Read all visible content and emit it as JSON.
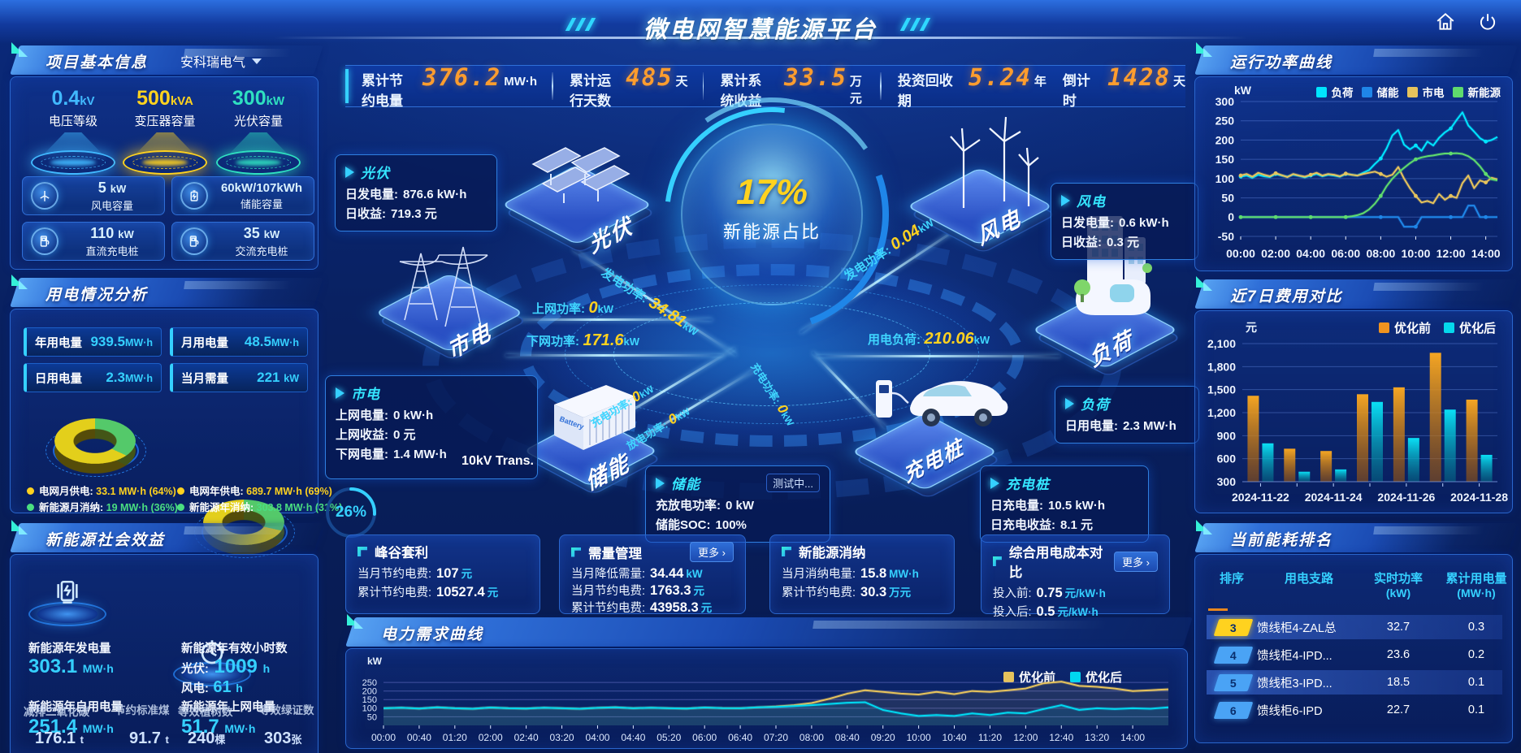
{
  "header": {
    "title": "微电网智慧能源平台"
  },
  "kpi_bar": [
    {
      "label": "累计节约电量",
      "value": "376.2",
      "unit": "MW·h"
    },
    {
      "label": "累计运行天数",
      "value": "485",
      "unit": "天"
    },
    {
      "label": "累计系统收益",
      "value": "33.5",
      "unit": "万元"
    },
    {
      "label": "投资回收期",
      "value": "5.24",
      "unit": "年"
    },
    {
      "label": "倒计时",
      "value": "1428",
      "unit": "天"
    }
  ],
  "project_info": {
    "title": "项目基本信息",
    "company": "安科瑞电气",
    "cones": [
      {
        "value": "0.4",
        "unit": "kV",
        "label": "电压等级",
        "color": "#41b9ff"
      },
      {
        "value": "500",
        "unit": "kVA",
        "label": "变压器容量",
        "color": "#ffd21f"
      },
      {
        "value": "300",
        "unit": "kW",
        "label": "光伏容量",
        "color": "#2fe0c0"
      }
    ],
    "cards": [
      {
        "value": "5",
        "unit": "kW",
        "label": "风电容量",
        "icon": "wind-turbine"
      },
      {
        "value": "60kW/107kWh",
        "unit": "",
        "label": "储能容量",
        "icon": "battery"
      },
      {
        "value": "110",
        "unit": "kW",
        "label": "直流充电桩",
        "icon": "dc-charger"
      },
      {
        "value": "35",
        "unit": "kW",
        "label": "交流充电桩",
        "icon": "ac-charger"
      }
    ]
  },
  "usage": {
    "title": "用电情况分析",
    "stats": [
      {
        "label": "年用电量",
        "value": "939.5",
        "unit": "MW·h"
      },
      {
        "label": "月用电量",
        "value": "48.5",
        "unit": "MW·h"
      },
      {
        "label": "日用电量",
        "value": "2.3",
        "unit": "MW·h"
      },
      {
        "label": "当月需量",
        "value": "221",
        "unit": "kW"
      }
    ],
    "donuts": [
      {
        "grid_label": "电网月供电:",
        "grid_value": "33.1 MW·h (64%)",
        "renew_label": "新能源月消纳:",
        "renew_value": "19 MW·h (36%)",
        "grid_pct": 64
      },
      {
        "grid_label": "电网年供电:",
        "grid_value": "689.7 MW·h (69%)",
        "renew_label": "新能源年消纳:",
        "renew_value": "303.8 MW·h (31%)",
        "grid_pct": 69
      }
    ]
  },
  "benefits": {
    "title": "新能源社会效益",
    "gen_label": "新能源年发电量",
    "gen_value": "303.1",
    "gen_unit": "MW·h",
    "hours_label": "新能源年有效小时数",
    "pv_k": "光伏:",
    "pv_v": "1009",
    "pv_u": "h",
    "wind_k": "风电:",
    "wind_v": "61",
    "wind_u": "h",
    "self_label": "新能源年自用电量",
    "self_value": "251.4",
    "self_unit": "MW·h",
    "co2_label": "减排二氧化碳",
    "co2_value": "176.1",
    "co2_unit": "t",
    "coal_label": "节约标准煤",
    "coal_value": "91.7",
    "coal_unit": "t",
    "export_label": "新能源年上网电量",
    "export_value": "51.7",
    "export_unit": "MW·h",
    "trees_label": "等效植树数",
    "trees_value": "240",
    "trees_unit": "棵",
    "cert_label": "等效绿证数",
    "cert_value": "303",
    "cert_unit": "张"
  },
  "center": {
    "orb_pct": "17%",
    "orb_label": "新能源占比",
    "nodes": {
      "pv": "光伏",
      "wind": "风电",
      "grid": "市电",
      "load": "负荷",
      "storage": "储能",
      "charger": "充电桩"
    },
    "storage_icon_text": "Battery",
    "boxes": {
      "pv": {
        "title": "光伏",
        "rows": [
          {
            "k": "日发电量:",
            "v": "876.6 kW·h"
          },
          {
            "k": "日收益:",
            "v": "719.3 元"
          }
        ]
      },
      "wind": {
        "title": "风电",
        "rows": [
          {
            "k": "日发电量:",
            "v": "0.6 kW·h"
          },
          {
            "k": "日收益:",
            "v": "0.3 元"
          }
        ]
      },
      "grid": {
        "title": "市电",
        "rows": [
          {
            "k": "上网电量:",
            "v": "0 kW·h"
          },
          {
            "k": "上网收益:",
            "v": "0 元"
          },
          {
            "k": "下网电量:",
            "v": "1.4 MW·h"
          }
        ],
        "gauge_pct": "26%",
        "gauge_label": "10kV Trans."
      },
      "load": {
        "title": "负荷",
        "rows": [
          {
            "k": "日用电量:",
            "v": "2.3 MW·h"
          }
        ]
      },
      "storage": {
        "title": "储能",
        "badge": "测试中...",
        "rows": [
          {
            "k": "充放电功率:",
            "v": "0 kW"
          },
          {
            "k": "储能SOC:",
            "v": "100%"
          }
        ]
      },
      "charger": {
        "title": "充电桩",
        "rows": [
          {
            "k": "日充电量:",
            "v": "10.5 kW·h"
          },
          {
            "k": "日充电收益:",
            "v": "8.1 元"
          }
        ]
      }
    },
    "flows": {
      "pv_gen": {
        "k": "发电功率:",
        "v": "34.81",
        "u": "kW"
      },
      "to_grid": {
        "k": "上网功率:",
        "v": "0",
        "u": "kW"
      },
      "from_grid": {
        "k": "下网功率:",
        "v": "171.6",
        "u": "kW"
      },
      "wind_gen": {
        "k": "发电功率:",
        "v": "0.04",
        "u": "kW"
      },
      "load_power": {
        "k": "用电负荷:",
        "v": "210.06",
        "u": "kW"
      },
      "st_charge": {
        "k": "充电功率:",
        "v": "0",
        "u": "kW"
      },
      "st_discharge": {
        "k": "放电功率:",
        "v": "0",
        "u": "kW"
      },
      "ev_charge": {
        "k": "充电功率:",
        "v": "0",
        "u": "kW"
      }
    }
  },
  "cards": [
    {
      "title": "峰谷套利",
      "more": "",
      "rows": [
        {
          "k": "当月节约电费:",
          "v": "107",
          "u": "元"
        },
        {
          "k": "累计节约电费:",
          "v": "10527.4",
          "u": "元"
        }
      ]
    },
    {
      "title": "需量管理",
      "more": "更多 ›",
      "rows": [
        {
          "k": "当月降低需量:",
          "v": "34.44",
          "u": "kW"
        },
        {
          "k": "当月节约电费:",
          "v": "1763.3",
          "u": "元"
        },
        {
          "k": "累计节约电费:",
          "v": "43958.3",
          "u": "元"
        }
      ]
    },
    {
      "title": "新能源消纳",
      "more": "",
      "rows": [
        {
          "k": "当月消纳电量:",
          "v": "15.8",
          "u": "MW·h"
        },
        {
          "k": "累计节约电费:",
          "v": "30.3",
          "u": "万元"
        }
      ]
    },
    {
      "title": "综合用电成本对比",
      "more": "更多 ›",
      "rows": [
        {
          "k": "投入前:",
          "v": "0.75",
          "u": "元/kW·h"
        },
        {
          "k": "投入后:",
          "v": "0.5",
          "u": "元/kW·h"
        }
      ]
    }
  ],
  "rank_table": {
    "title": "当前能耗排名",
    "headers": {
      "c1": "排序",
      "c2": "用电支路",
      "c3a": "实时功率",
      "c3b": "(kW)",
      "c4a": "累计用电量",
      "c4b": "(MW·h)"
    },
    "rows": [
      {
        "rank": "3",
        "branch": "馈线柜4-ZAL总",
        "power": "32.7",
        "energy": "0.3"
      },
      {
        "rank": "4",
        "branch": "馈线柜4-IPD...",
        "power": "23.6",
        "energy": "0.2"
      },
      {
        "rank": "5",
        "branch": "馈线柜3-IPD...",
        "power": "18.5",
        "energy": "0.1"
      },
      {
        "rank": "6",
        "branch": "馈线柜6-IPD",
        "power": "22.7",
        "energy": "0.1"
      }
    ]
  },
  "chart_data": [
    {
      "id": "power_curve",
      "type": "line",
      "title": "运行功率曲线",
      "ylabel": "kW",
      "ylim": [
        -50,
        300
      ],
      "yticks": [
        300,
        250,
        200,
        150,
        100,
        50,
        0,
        -50
      ],
      "xticks": [
        "00:00",
        "02:00",
        "04:00",
        "06:00",
        "08:00",
        "10:00",
        "12:00",
        "14:00"
      ],
      "legend_position": "top",
      "series": [
        {
          "name": "负荷",
          "color": "#00e5ff",
          "values": [
            105,
            108,
            102,
            110,
            106,
            104,
            112,
            108,
            105,
            110,
            107,
            103,
            108,
            112,
            106,
            110,
            108,
            105,
            112,
            110,
            108,
            115,
            122,
            138,
            152,
            178,
            212,
            226,
            188,
            176,
            186,
            172,
            196,
            186,
            206,
            220,
            230,
            252,
            272,
            238,
            222,
            205,
            196,
            200,
            208
          ]
        },
        {
          "name": "储能",
          "color": "#1f86e8",
          "values": [
            0,
            0,
            0,
            0,
            0,
            0,
            0,
            0,
            0,
            0,
            0,
            0,
            0,
            0,
            0,
            0,
            0,
            0,
            0,
            0,
            0,
            0,
            0,
            0,
            0,
            0,
            0,
            0,
            -25,
            -25,
            -25,
            0,
            0,
            0,
            0,
            0,
            0,
            0,
            0,
            30,
            30,
            0,
            0,
            0,
            0
          ]
        },
        {
          "name": "市电",
          "color": "#e6c35c",
          "values": [
            108,
            112,
            105,
            115,
            110,
            106,
            114,
            109,
            104,
            112,
            108,
            105,
            110,
            115,
            108,
            112,
            110,
            106,
            113,
            110,
            108,
            112,
            115,
            118,
            112,
            105,
            110,
            130,
            100,
            75,
            55,
            38,
            42,
            36,
            60,
            45,
            55,
            50,
            88,
            108,
            75,
            95,
            90,
            102,
            98
          ]
        },
        {
          "name": "新能源",
          "color": "#5fdb6d",
          "values": [
            0,
            0,
            0,
            0,
            0,
            0,
            0,
            0,
            0,
            0,
            0,
            0,
            0,
            0,
            0,
            0,
            0,
            0,
            0,
            2,
            5,
            10,
            20,
            35,
            55,
            80,
            100,
            115,
            128,
            140,
            150,
            155,
            158,
            160,
            163,
            165,
            165,
            166,
            164,
            158,
            148,
            132,
            112,
            98,
            95
          ]
        }
      ]
    },
    {
      "id": "cost_compare",
      "type": "bar",
      "title": "近7日费用对比",
      "ylabel": "元",
      "ylim": [
        300,
        2100
      ],
      "yticks": [
        2100,
        1800,
        1500,
        1200,
        900,
        600,
        300
      ],
      "ytick_labels": [
        "2,100",
        "1,800",
        "1,500",
        "1,200",
        "900",
        "600",
        "300"
      ],
      "categories": [
        "2024-11-22",
        "2024-11-23",
        "2024-11-24",
        "2024-11-25",
        "2024-11-26",
        "2024-11-27",
        "2024-11-28"
      ],
      "xtick_labels_shown": [
        "2024-11-22",
        "2024-11-24",
        "2024-11-26",
        "2024-11-28"
      ],
      "legend_position": "top",
      "series": [
        {
          "name": "优化前",
          "color": "#f0931f",
          "values": [
            1420,
            730,
            700,
            1440,
            1530,
            1980,
            1370
          ]
        },
        {
          "name": "优化后",
          "color": "#05d8ec",
          "values": [
            800,
            430,
            460,
            1340,
            870,
            1240,
            650
          ]
        }
      ]
    },
    {
      "id": "demand_curve",
      "type": "line",
      "title": "电力需求曲线",
      "ylabel": "kW",
      "ylim": [
        0,
        265
      ],
      "yticks": [
        250,
        200,
        150,
        100,
        50
      ],
      "xticks": [
        "00:00",
        "00:40",
        "01:20",
        "02:00",
        "02:40",
        "03:20",
        "04:00",
        "04:40",
        "05:20",
        "06:00",
        "06:40",
        "07:20",
        "08:00",
        "08:40",
        "09:20",
        "10:00",
        "10:40",
        "11:20",
        "12:00",
        "12:40",
        "13:20",
        "14:00"
      ],
      "legend_position": "top-right",
      "series": [
        {
          "name": "优化前",
          "color": "#e6c35c",
          "values": [
            100,
            103,
            98,
            105,
            100,
            97,
            104,
            100,
            98,
            103,
            100,
            97,
            102,
            105,
            100,
            103,
            100,
            98,
            104,
            101,
            100,
            105,
            110,
            118,
            130,
            155,
            185,
            205,
            195,
            185,
            180,
            195,
            182,
            200,
            195,
            205,
            215,
            245,
            255,
            230,
            225,
            215,
            200,
            205,
            210
          ]
        },
        {
          "name": "优化后",
          "color": "#00d8f0",
          "values": [
            100,
            103,
            98,
            105,
            100,
            97,
            104,
            100,
            98,
            103,
            100,
            97,
            102,
            105,
            100,
            103,
            100,
            98,
            104,
            101,
            100,
            105,
            108,
            112,
            118,
            125,
            132,
            135,
            90,
            70,
            55,
            60,
            55,
            70,
            60,
            75,
            70,
            95,
            118,
            90,
            100,
            95,
            100,
            97,
            105
          ]
        }
      ]
    }
  ]
}
